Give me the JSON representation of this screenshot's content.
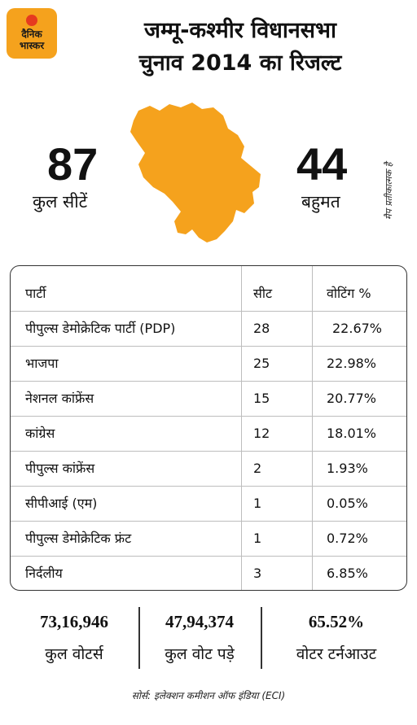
{
  "brand": {
    "line1": "दैनिक",
    "line2": "भास्कर"
  },
  "title_line1": "जम्मू-कश्मीर विधानसभा",
  "title_line2": "चुनाव 2014 का रिजल्ट",
  "total_seats": {
    "value": "87",
    "label": "कुल सीटें"
  },
  "majority": {
    "value": "44",
    "label": "बहुमत"
  },
  "map_note": "मैप प्रतीकात्मक है",
  "map_color": "#f5a21d",
  "chart_data": {
    "type": "table",
    "columns": [
      "पार्टी",
      "सीट",
      "वोटिंग %"
    ],
    "rows": [
      {
        "party": "पीपुल्स डेमोक्रेटिक पार्टी (PDP)",
        "seats": "28",
        "vote_share": "22.67%"
      },
      {
        "party": "भाजपा",
        "seats": "25",
        "vote_share": "22.98%"
      },
      {
        "party": "नेशनल कांफ्रेंस",
        "seats": "15",
        "vote_share": "20.77%"
      },
      {
        "party": "कांग्रेस",
        "seats": "12",
        "vote_share": "18.01%"
      },
      {
        "party": "पीपुल्स कांफ्रेंस",
        "seats": "2",
        "vote_share": "1.93%"
      },
      {
        "party": "सीपीआई (एम)",
        "seats": "1",
        "vote_share": "0.05%"
      },
      {
        "party": "पीपुल्स डेमोक्रेटिक फ्रंट",
        "seats": "1",
        "vote_share": "0.72%"
      },
      {
        "party": "निर्दलीय",
        "seats": "3",
        "vote_share": "6.85%"
      }
    ]
  },
  "stats": [
    {
      "value": "73,16,946",
      "label": "कुल वोटर्स"
    },
    {
      "value": "47,94,374",
      "label": "कुल वोट पड़े"
    },
    {
      "value": "65.52%",
      "label": "वोटर टर्नआउट"
    }
  ],
  "source": "सोर्स: इलेक्शन कमीशन ऑफ इंडिया (ECI)"
}
